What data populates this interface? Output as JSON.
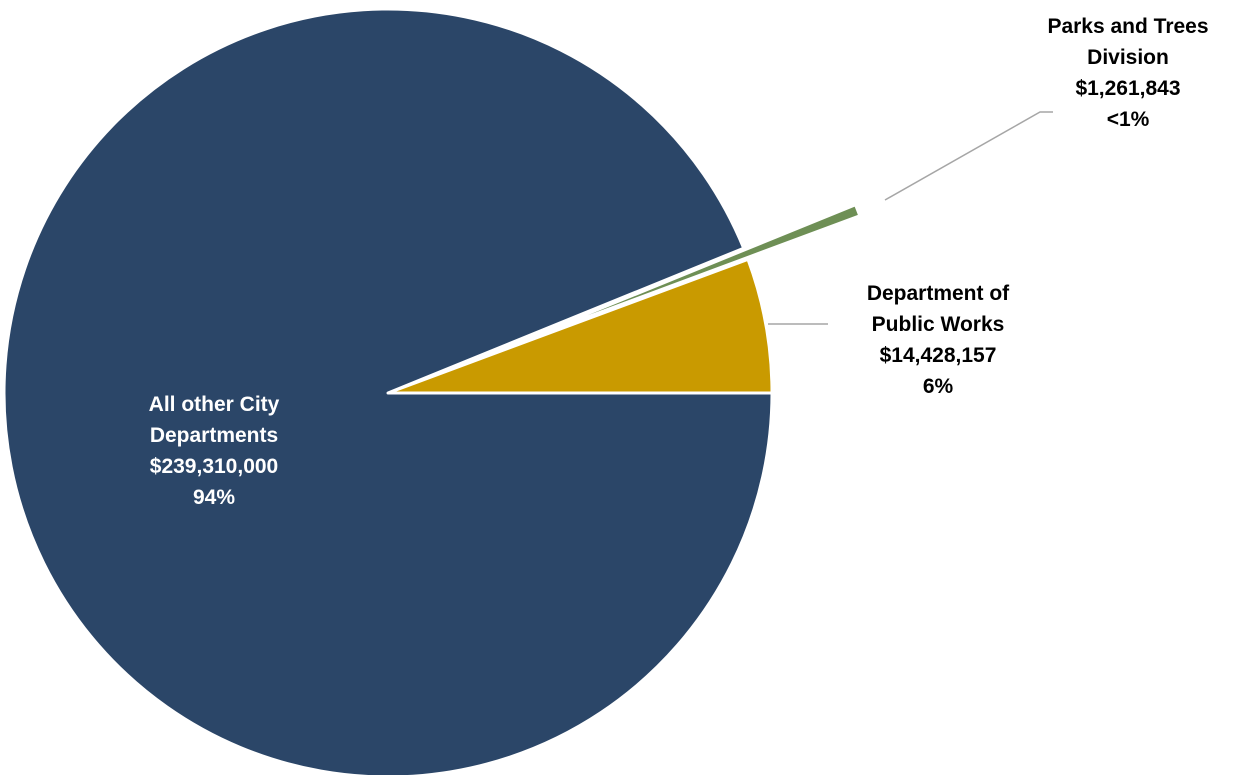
{
  "chart_data": {
    "type": "pie",
    "title": "",
    "start_angle_deg": 0,
    "direction": "counterclockwise",
    "slices": [
      {
        "name": "Department of Public Works",
        "value": 14428157,
        "value_label": "$14,428,157",
        "percent_label": "6%",
        "color": "#C99A00",
        "label_lines": [
          "Department of",
          "Public Works",
          "$14,428,157",
          "6%"
        ]
      },
      {
        "name": "Parks and Trees Division",
        "value": 1261843,
        "value_label": "$1,261,843",
        "percent_label": "<1%",
        "color": "#6E8F55",
        "label_lines": [
          "Parks and Trees",
          "Division",
          "$1,261,843",
          "<1%"
        ]
      },
      {
        "name": "All other City Departments",
        "value": 239310000,
        "value_label": "$239,310,000",
        "percent_label": "94%",
        "color": "#2B4668",
        "label_lines": [
          "All other City",
          "Departments",
          "$239,310,000",
          "94%"
        ]
      }
    ]
  }
}
